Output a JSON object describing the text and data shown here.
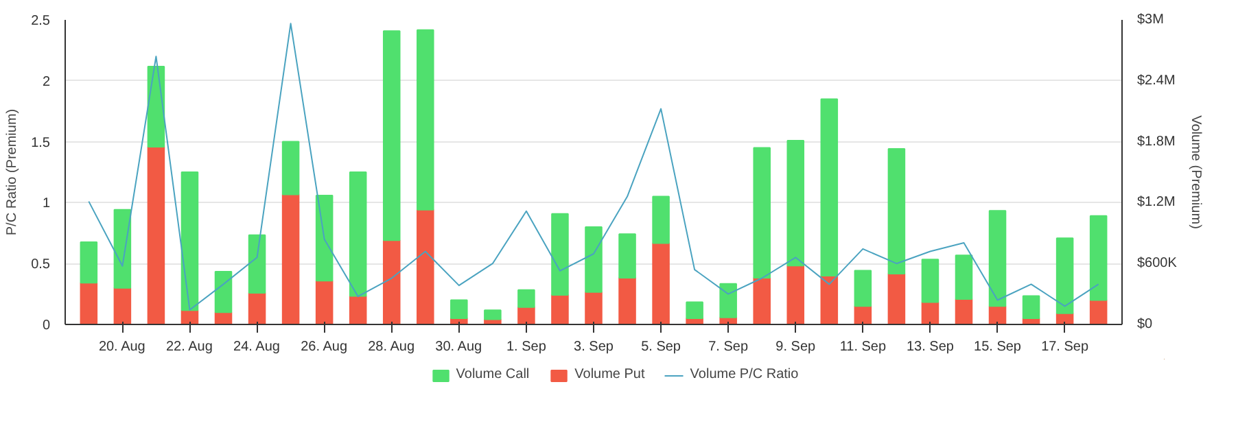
{
  "chart_data": {
    "type": "bar",
    "stacked": true,
    "categories": [
      null,
      "20. Aug",
      null,
      "22. Aug",
      null,
      "24. Aug",
      null,
      "26. Aug",
      null,
      "28. Aug",
      null,
      "30. Aug",
      null,
      "1. Sep",
      null,
      "3. Sep",
      null,
      "5. Sep",
      null,
      "7. Sep",
      null,
      "9. Sep",
      null,
      "11. Sep",
      null,
      "13. Sep",
      null,
      "15. Sep",
      null,
      "17. Sep",
      null
    ],
    "ylabel": "P/C Ratio (Premium)",
    "y2label": "Volume (Premium)",
    "ylim": [
      0,
      2.5
    ],
    "yticks": [
      0,
      0.5,
      1,
      1.5,
      2,
      2.5
    ],
    "y2lim": [
      0,
      3000000
    ],
    "y2ticks": [
      {
        "value": 0,
        "label": "$0"
      },
      {
        "value": 600000,
        "label": "$600K"
      },
      {
        "value": 1200000,
        "label": "$1.2M"
      },
      {
        "value": 1800000,
        "label": "$1.8M"
      },
      {
        "value": 2400000,
        "label": "$2.4M"
      },
      {
        "value": 3000000,
        "label": "$3M"
      }
    ],
    "grid": "y",
    "legend": "bottom",
    "marker": "none",
    "line_style": "solid",
    "series": [
      {
        "name": "Volume Put",
        "color": "#f25a44",
        "axis": "y2",
        "values": [
          410000,
          360000,
          1750000,
          140000,
          120000,
          310000,
          1280000,
          430000,
          280000,
          830000,
          1130000,
          60000,
          50000,
          170000,
          290000,
          320000,
          460000,
          800000,
          60000,
          70000,
          460000,
          580000,
          480000,
          180000,
          500000,
          220000,
          250000,
          180000,
          60000,
          110000,
          240000
        ]
      },
      {
        "name": "Volume Call",
        "color": "#50e06e",
        "axis": "y2",
        "values": [
          400000,
          770000,
          790000,
          1360000,
          400000,
          570000,
          520000,
          840000,
          1220000,
          2060000,
          1770000,
          180000,
          90000,
          170000,
          800000,
          640000,
          430000,
          460000,
          160000,
          330000,
          1280000,
          1230000,
          1740000,
          350000,
          1230000,
          420000,
          430000,
          940000,
          220000,
          740000,
          830000
        ]
      },
      {
        "name": "Volume P/C Ratio",
        "type": "line",
        "color": "#4aa3c0",
        "values": [
          1.01,
          0.48,
          2.2,
          0.12,
          0.33,
          0.55,
          2.47,
          0.7,
          0.23,
          0.38,
          0.6,
          0.32,
          0.5,
          0.93,
          0.44,
          0.58,
          1.05,
          1.77,
          0.45,
          0.25,
          0.38,
          0.55,
          0.33,
          0.62,
          0.5,
          0.6,
          0.67,
          0.2,
          0.33,
          0.15,
          0.33
        ]
      }
    ]
  }
}
